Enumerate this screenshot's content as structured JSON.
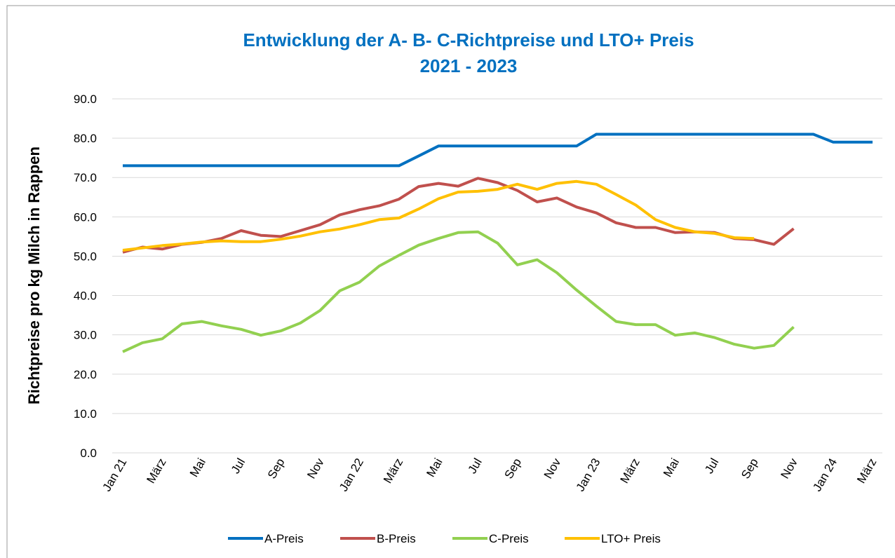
{
  "chart_data": {
    "type": "line",
    "title": "Entwicklung der A- B- C-Richtpreise und LTO+ Preis",
    "subtitle": "2021 - 2023",
    "y_label": "Richtpreise pro kg Milch in Rappen",
    "categories": [
      "Jan 21",
      null,
      "März",
      null,
      "Mai",
      null,
      "Jul",
      null,
      "Sep",
      null,
      "Nov",
      null,
      "Jan 22",
      null,
      "März",
      null,
      "Mai",
      null,
      "Jul",
      null,
      "Sep",
      null,
      "Nov",
      null,
      "Jan 23",
      null,
      "März",
      null,
      "Mai",
      null,
      "Jul",
      null,
      "Sep",
      null,
      "Nov",
      null,
      "Jan 24",
      null,
      "März"
    ],
    "series": [
      {
        "name": "A-Preis",
        "color": "#0070c0",
        "values": [
          73,
          73,
          73,
          73,
          73,
          73,
          73,
          73,
          73,
          73,
          73,
          73,
          73,
          73,
          73,
          75.5,
          78,
          78,
          78,
          78,
          78,
          78,
          78,
          78,
          81,
          81,
          81,
          81,
          81,
          81,
          81,
          81,
          81,
          81,
          81,
          81,
          79,
          79,
          79
        ]
      },
      {
        "name": "B-Preis",
        "color": "#c0504d",
        "values": [
          51,
          52.3,
          51.8,
          53,
          53.5,
          54.5,
          56.5,
          55.3,
          55,
          56.5,
          58,
          60.5,
          61.8,
          62.8,
          64.5,
          67.7,
          68.5,
          67.8,
          69.8,
          68.7,
          66.7,
          63.8,
          64.8,
          62.5,
          61,
          58.5,
          57.3,
          57.3,
          56,
          56.2,
          56,
          54.5,
          54.2,
          53,
          57,
          null,
          null,
          null,
          null
        ]
      },
      {
        "name": "C-Preis",
        "color": "#92d050",
        "values": [
          25.7,
          28,
          29,
          32.8,
          33.4,
          32.3,
          31.4,
          29.9,
          31,
          33,
          36.2,
          41.2,
          43.4,
          47.5,
          50.2,
          52.8,
          54.5,
          56,
          56.2,
          53.3,
          47.8,
          49.1,
          45.8,
          41.4,
          37.3,
          33.4,
          32.6,
          32.6,
          29.9,
          30.5,
          29.3,
          27.6,
          26.6,
          27.3,
          32,
          null,
          null,
          null,
          null
        ]
      },
      {
        "name": "LTO+ Preis",
        "color": "#ffc000",
        "values": [
          51.5,
          52.1,
          52.7,
          53.1,
          53.6,
          53.9,
          53.7,
          53.7,
          54.3,
          55.1,
          56.2,
          56.9,
          58,
          59.3,
          59.7,
          62,
          64.6,
          66.3,
          66.5,
          67,
          68.3,
          67,
          68.5,
          69,
          68.3,
          65.7,
          63,
          59.3,
          57.3,
          56.2,
          55.8,
          54.7,
          54.5,
          null,
          null,
          null,
          null,
          null,
          null
        ]
      }
    ],
    "ylim": [
      0,
      90
    ],
    "yticks": [
      {
        "value": 0,
        "label": "0.0"
      },
      {
        "value": 10,
        "label": "10.0"
      },
      {
        "value": 20,
        "label": "20.0"
      },
      {
        "value": 30,
        "label": "30.0"
      },
      {
        "value": 40,
        "label": "40.0"
      },
      {
        "value": 50,
        "label": "50.0"
      },
      {
        "value": 60,
        "label": "60.0"
      },
      {
        "value": 70,
        "label": "70.0"
      },
      {
        "value": 80,
        "label": "80.0"
      },
      {
        "value": 90,
        "label": "90.0"
      }
    ],
    "grid": true,
    "legend": "bottom"
  }
}
